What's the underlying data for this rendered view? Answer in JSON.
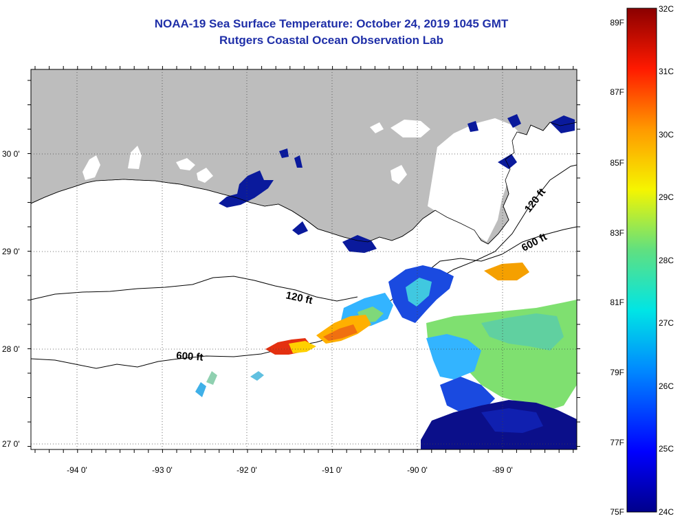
{
  "title": {
    "line1": "NOAA-19 Sea Surface Temperature:  October 24, 2019 1045 GMT",
    "line2": "Rutgers Coastal Ocean Observation Lab"
  },
  "map": {
    "latitude_labels": [
      "30 0'",
      "29 0'",
      "28 0'",
      "27 0'"
    ],
    "longitude_labels": [
      "-94 0'",
      "-93 0'",
      "-92 0'",
      "-91 0'",
      "-90 0'",
      "-89 0'"
    ],
    "contour_labels": [
      "120 ft",
      "600 ft",
      "120 ft",
      "600 ft"
    ],
    "colors": {
      "land": "#bdbdbd",
      "cloud": "#ffffff",
      "title": "#1f2fa8"
    }
  },
  "colorbar": {
    "celsius_labels": [
      "32C",
      "31C",
      "30C",
      "29C",
      "28C",
      "27C",
      "26C",
      "25C",
      "24C"
    ],
    "fahrenheit_labels": [
      "89F",
      "87F",
      "85F",
      "83F",
      "81F",
      "79F",
      "77F",
      "75F"
    ],
    "range_celsius": [
      24,
      32
    ]
  }
}
